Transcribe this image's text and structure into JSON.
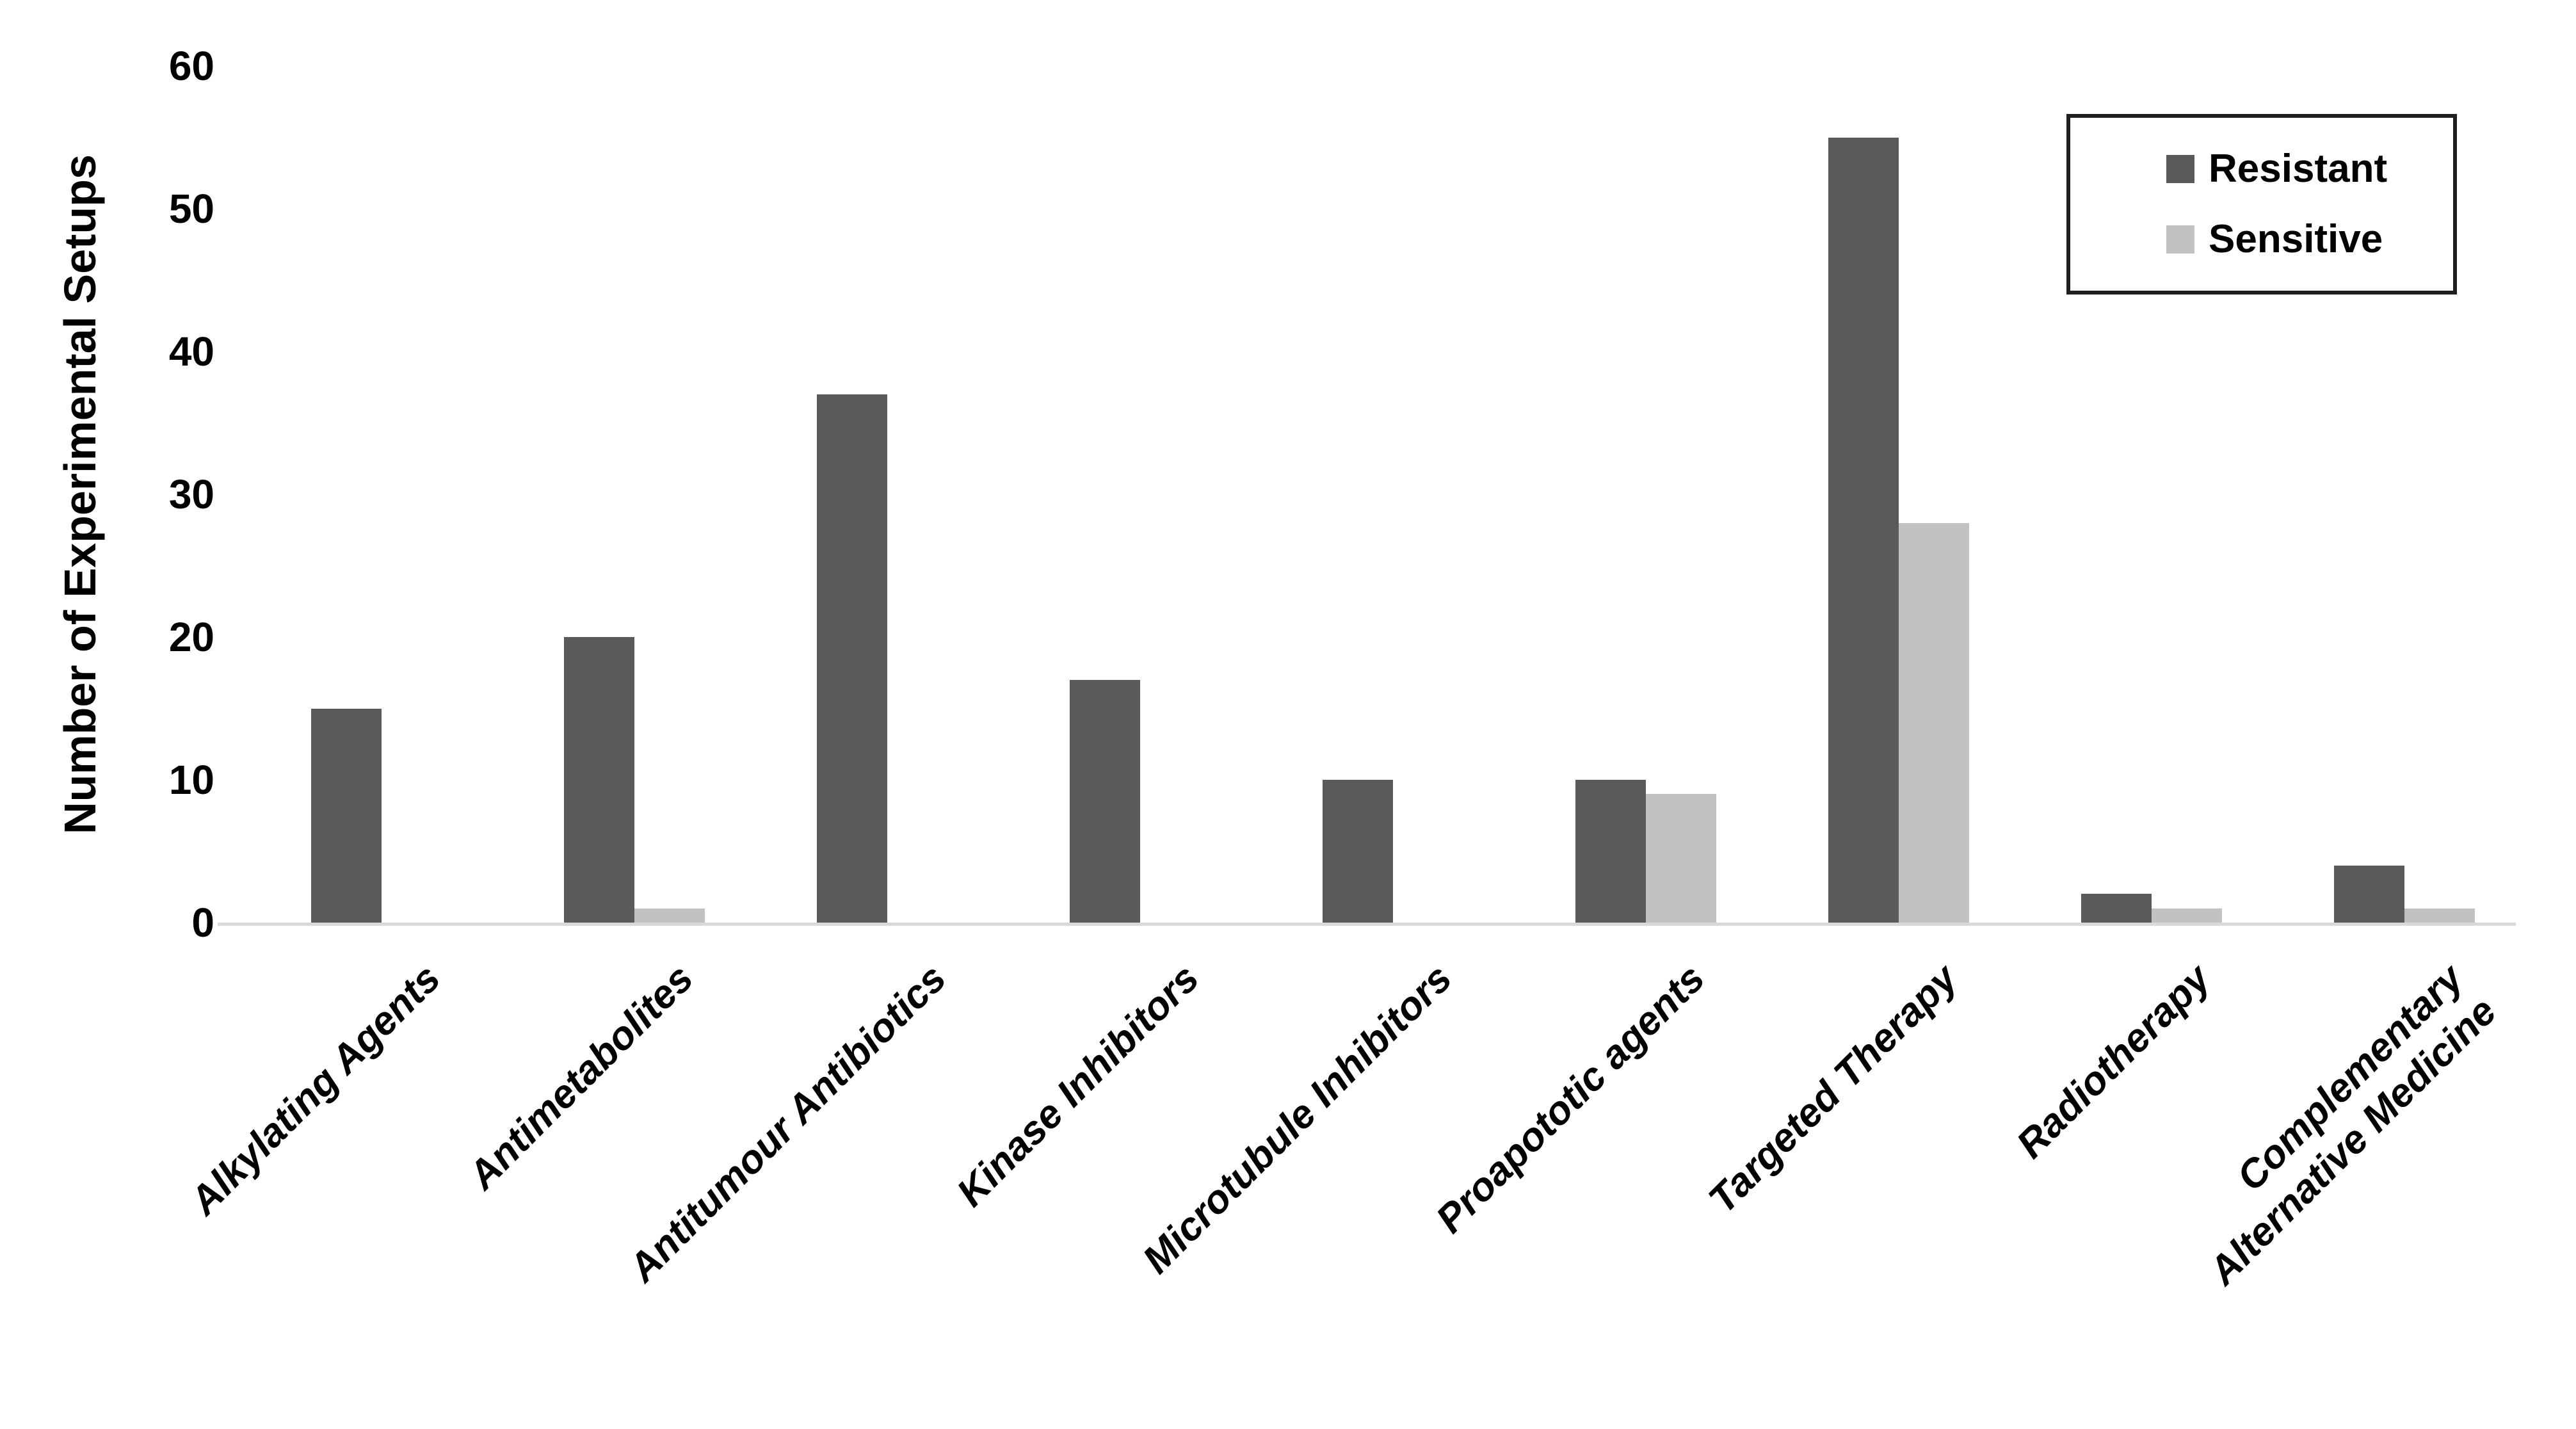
{
  "chart_data": {
    "type": "bar",
    "title": "",
    "categories": [
      "Alkylating Agents",
      "Antimetabolites",
      "Antitumour Antibiotics",
      "Kinase Inhibitors",
      "Microtubule Inhibitors",
      "Proapototic agents",
      "Targeted Therapy",
      "Radiotherapy",
      "Complementary\nAlternative Medicine"
    ],
    "series": [
      {
        "name": "Resistant",
        "color": "#5a5a5a",
        "values": [
          15,
          20,
          37,
          17,
          10,
          10,
          55,
          2,
          4
        ]
      },
      {
        "name": "Sensitive",
        "color": "#c2c2c2",
        "values": [
          0,
          1,
          0,
          0,
          0,
          9,
          28,
          1,
          1
        ]
      }
    ],
    "xlabel": "",
    "ylabel": "Number of Experimental Setups",
    "ylim": [
      0,
      60
    ],
    "yticks": [
      0,
      10,
      20,
      30,
      40,
      50,
      60
    ],
    "grid": false,
    "legend_position": "top-right",
    "axis_line_color": "#d9d9d9",
    "text_color": "#000000",
    "background_color": "#ffffff"
  }
}
